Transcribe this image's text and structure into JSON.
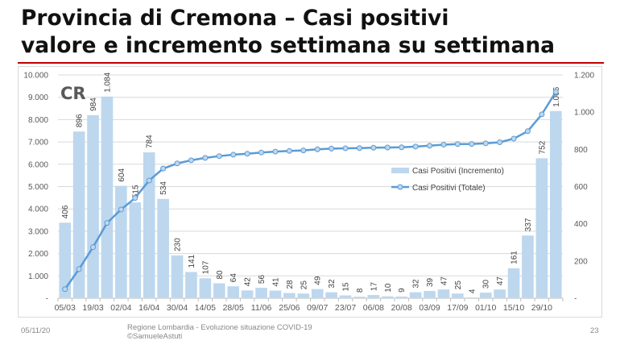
{
  "title": {
    "line1": "Provincia di Cremona – Casi positivi",
    "line2": "valore e incremento settimana su settimana"
  },
  "footer": {
    "date": "05/11/20",
    "source_line1": "Regione Lombardia - Evoluzione situazione COVID-19",
    "source_line2": "©SamueleAstuti",
    "page": "23"
  },
  "colors": {
    "bars": "#BDD7EE",
    "line": "#5B9BD5",
    "rule": "#C00000"
  },
  "chart_data": {
    "type": "bar+line",
    "corner_label": "CR",
    "x_tick_labels": [
      "05/03",
      "19/03",
      "02/04",
      "16/04",
      "30/04",
      "14/05",
      "28/05",
      "11/06",
      "25/06",
      "09/07",
      "23/07",
      "06/08",
      "20/08",
      "03/09",
      "17/09",
      "01/10",
      "15/10",
      "29/10"
    ],
    "left_axis": {
      "ylim": [
        0,
        10000
      ],
      "ticks": [
        "-",
        "1.000",
        "2.000",
        "3.000",
        "4.000",
        "5.000",
        "6.000",
        "7.000",
        "8.000",
        "9.000",
        "10.000"
      ]
    },
    "right_axis": {
      "ylim": [
        0,
        1200
      ],
      "ticks": [
        "-",
        "200",
        "400",
        "600",
        "800",
        "1.000",
        "1.200"
      ]
    },
    "series": [
      {
        "name": "Casi Positivi (Incremento)",
        "type": "bar",
        "axis": "right",
        "values": [
          406,
          896,
          984,
          1084,
          604,
          515,
          784,
          534,
          230,
          141,
          107,
          80,
          64,
          42,
          56,
          41,
          28,
          25,
          49,
          32,
          15,
          8,
          17,
          10,
          9,
          32,
          39,
          47,
          25,
          4,
          30,
          47,
          161,
          337,
          752,
          1006
        ],
        "labels": [
          "406",
          "896",
          "984",
          "1.084",
          "604",
          "515",
          "784",
          "534",
          "230",
          "141",
          "107",
          "80",
          "64",
          "42",
          "56",
          "41",
          "28",
          "25",
          "49",
          "32",
          "15",
          "8",
          "17",
          "10",
          "9",
          "32",
          "39",
          "47",
          "25",
          "4",
          "30",
          "47",
          "161",
          "337",
          "752",
          "1.006"
        ]
      },
      {
        "name": "Casi Positivi (Totale)",
        "type": "line",
        "axis": "left",
        "values": [
          406,
          1302,
          2286,
          3370,
          3974,
          4489,
          5273,
          5807,
          6037,
          6178,
          6285,
          6365,
          6429,
          6471,
          6527,
          6568,
          6596,
          6621,
          6670,
          6702,
          6717,
          6725,
          6742,
          6752,
          6761,
          6793,
          6832,
          6879,
          6904,
          6908,
          6938,
          6985,
          7146,
          7483,
          8235,
          9241
        ]
      }
    ],
    "legend": "center-right",
    "grid": true
  }
}
